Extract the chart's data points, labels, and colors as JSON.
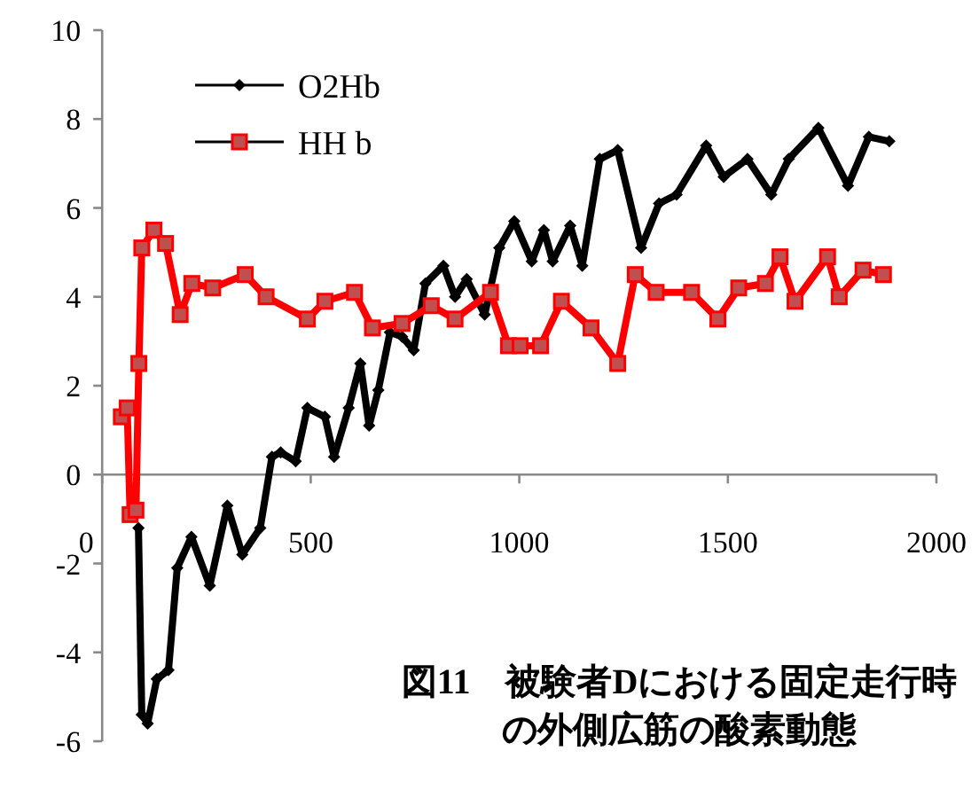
{
  "chart_data": {
    "type": "line",
    "title": "図11　被験者Dにおける固定走行時の外側広筋の酸素動態",
    "xlim": [
      0,
      2000
    ],
    "xticks": [
      0,
      500,
      1000,
      1500,
      2000
    ],
    "ylim": [
      -6,
      10
    ],
    "yticks": [
      -6,
      -4,
      -2,
      0,
      2,
      4,
      6,
      8,
      10
    ],
    "legend": "top left",
    "grid": false,
    "series": [
      {
        "name": "O2Hb",
        "color": "#000000",
        "marker": "diamond",
        "x": [
          87,
          95,
          109,
          131,
          159,
          180,
          214,
          258,
          300,
          336,
          379,
          407,
          428,
          464,
          492,
          534,
          556,
          591,
          619,
          640,
          662,
          690,
          719,
          747,
          775,
          818,
          846,
          874,
          917,
          952,
          988,
          1030,
          1059,
          1080,
          1122,
          1151,
          1193,
          1236,
          1292,
          1335,
          1377,
          1448,
          1490,
          1547,
          1604,
          1646,
          1717,
          1788,
          1838,
          1887
        ],
        "values": [
          -1.2,
          -5.4,
          -5.6,
          -4.6,
          -4.4,
          -2.1,
          -1.4,
          -2.5,
          -0.7,
          -1.8,
          -1.2,
          0.4,
          0.5,
          0.3,
          1.5,
          1.3,
          0.4,
          1.5,
          2.5,
          1.1,
          1.9,
          3.2,
          3.1,
          2.8,
          4.3,
          4.7,
          4.0,
          4.4,
          3.6,
          5.1,
          5.7,
          4.8,
          5.5,
          4.8,
          5.6,
          4.7,
          7.1,
          7.3,
          5.1,
          6.1,
          6.3,
          7.4,
          6.7,
          7.1,
          6.3,
          7.1,
          7.8,
          6.5,
          7.6,
          7.5
        ]
      },
      {
        "name": "HH b",
        "color": "#ff0000",
        "marker": "square",
        "x": [
          46,
          60,
          67,
          81,
          88,
          95,
          124,
          152,
          187,
          215,
          265,
          343,
          393,
          492,
          534,
          605,
          648,
          719,
          789,
          846,
          931,
          974,
          1002,
          1051,
          1101,
          1172,
          1236,
          1278,
          1328,
          1413,
          1476,
          1526,
          1590,
          1625,
          1661,
          1739,
          1767,
          1824,
          1873
        ],
        "values": [
          1.3,
          1.5,
          -0.9,
          -0.8,
          2.5,
          5.1,
          5.5,
          5.2,
          3.6,
          4.3,
          4.2,
          4.5,
          4.0,
          3.5,
          3.9,
          4.1,
          3.3,
          3.4,
          3.8,
          3.5,
          4.1,
          2.9,
          2.9,
          2.9,
          3.9,
          3.3,
          2.5,
          4.5,
          4.1,
          4.1,
          3.5,
          4.2,
          4.3,
          4.9,
          3.9,
          4.9,
          4.0,
          4.6,
          4.5
        ]
      }
    ]
  }
}
